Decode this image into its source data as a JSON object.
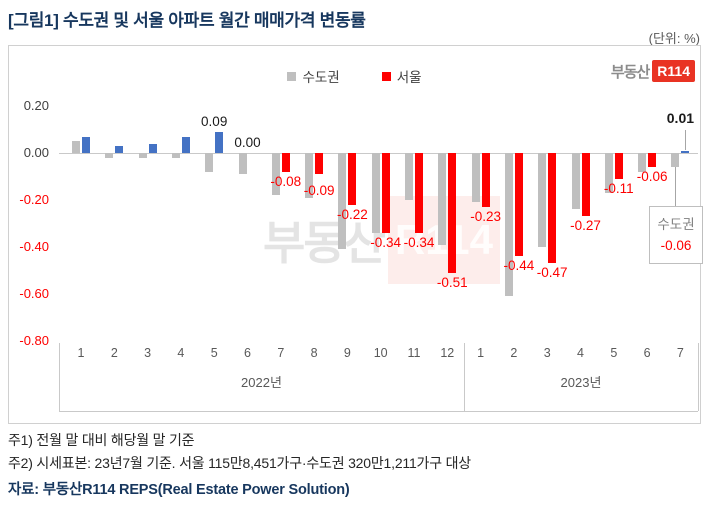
{
  "page": {
    "title": "[그림1] 수도권 및 서울 아파트 월간 매매가격 변동률",
    "unit": "(단위: %)",
    "notes": [
      "주1) 전월 말 대비 해당월 말 기준",
      "주2) 시세표본: 23년7월 기준. 서울 115만8,451가구·수도권 320만1,211가구 대상"
    ],
    "source": "자료: 부동산R114 REPS(Real Estate Power Solution)"
  },
  "logo": {
    "prefix": "부동산",
    "suffix": "R114"
  },
  "watermark": {
    "prefix": "부동산",
    "suffix": "R114"
  },
  "chart_data": {
    "type": "bar",
    "title": "수도권 및 서울 아파트 월간 매매가격 변동률",
    "unit": "%",
    "legend": [
      {
        "label": "수도권",
        "color": "#BFBFBF"
      },
      {
        "label": "서울",
        "color": "#FE0000"
      }
    ],
    "x_groups": [
      {
        "year": "2022년",
        "months": [
          "1",
          "2",
          "3",
          "4",
          "5",
          "6",
          "7",
          "8",
          "9",
          "10",
          "11",
          "12"
        ]
      },
      {
        "year": "2023년",
        "months": [
          "1",
          "2",
          "3",
          "4",
          "5",
          "6",
          "7"
        ]
      }
    ],
    "yticks": [
      0.2,
      0.0,
      -0.2,
      -0.4,
      -0.6,
      -0.8
    ],
    "ylim": [
      -0.8,
      0.2
    ],
    "grid": "none",
    "legend_position": "top-center",
    "series": [
      {
        "name": "수도권",
        "color": "#BFBFBF",
        "values": [
          0.05,
          -0.02,
          -0.02,
          -0.02,
          -0.08,
          -0.09,
          -0.18,
          -0.19,
          -0.41,
          -0.34,
          -0.2,
          -0.39,
          -0.21,
          -0.61,
          -0.4,
          -0.24,
          -0.17,
          -0.08,
          -0.06
        ]
      },
      {
        "name": "서울",
        "color_negative": "#FE0000",
        "color_positive": "#4472C4",
        "values": [
          0.07,
          0.03,
          0.04,
          0.07,
          0.09,
          0.0,
          -0.08,
          -0.09,
          -0.22,
          -0.34,
          -0.34,
          -0.51,
          -0.23,
          -0.44,
          -0.47,
          -0.27,
          -0.11,
          -0.06,
          0.01
        ],
        "labels": [
          null,
          null,
          null,
          null,
          {
            "text": "0.09"
          },
          {
            "text": "0.00"
          },
          {
            "text": "-0.08"
          },
          {
            "text": "-0.09",
            "dy": 9
          },
          {
            "text": "-0.22"
          },
          {
            "text": "-0.34"
          },
          {
            "text": "-0.34"
          },
          {
            "text": "-0.51"
          },
          {
            "text": "-0.23"
          },
          {
            "text": "-0.44"
          },
          {
            "text": "-0.47"
          },
          {
            "text": "-0.27"
          },
          {
            "text": "-0.11"
          },
          {
            "text": "-0.06"
          },
          null
        ]
      }
    ],
    "last_point_label": {
      "text": "0.01"
    },
    "callout": {
      "title": "수도권",
      "value": "-0.06"
    },
    "label_colors": {
      "positive": "#1a1a1a",
      "negative": "#FE0000"
    }
  }
}
